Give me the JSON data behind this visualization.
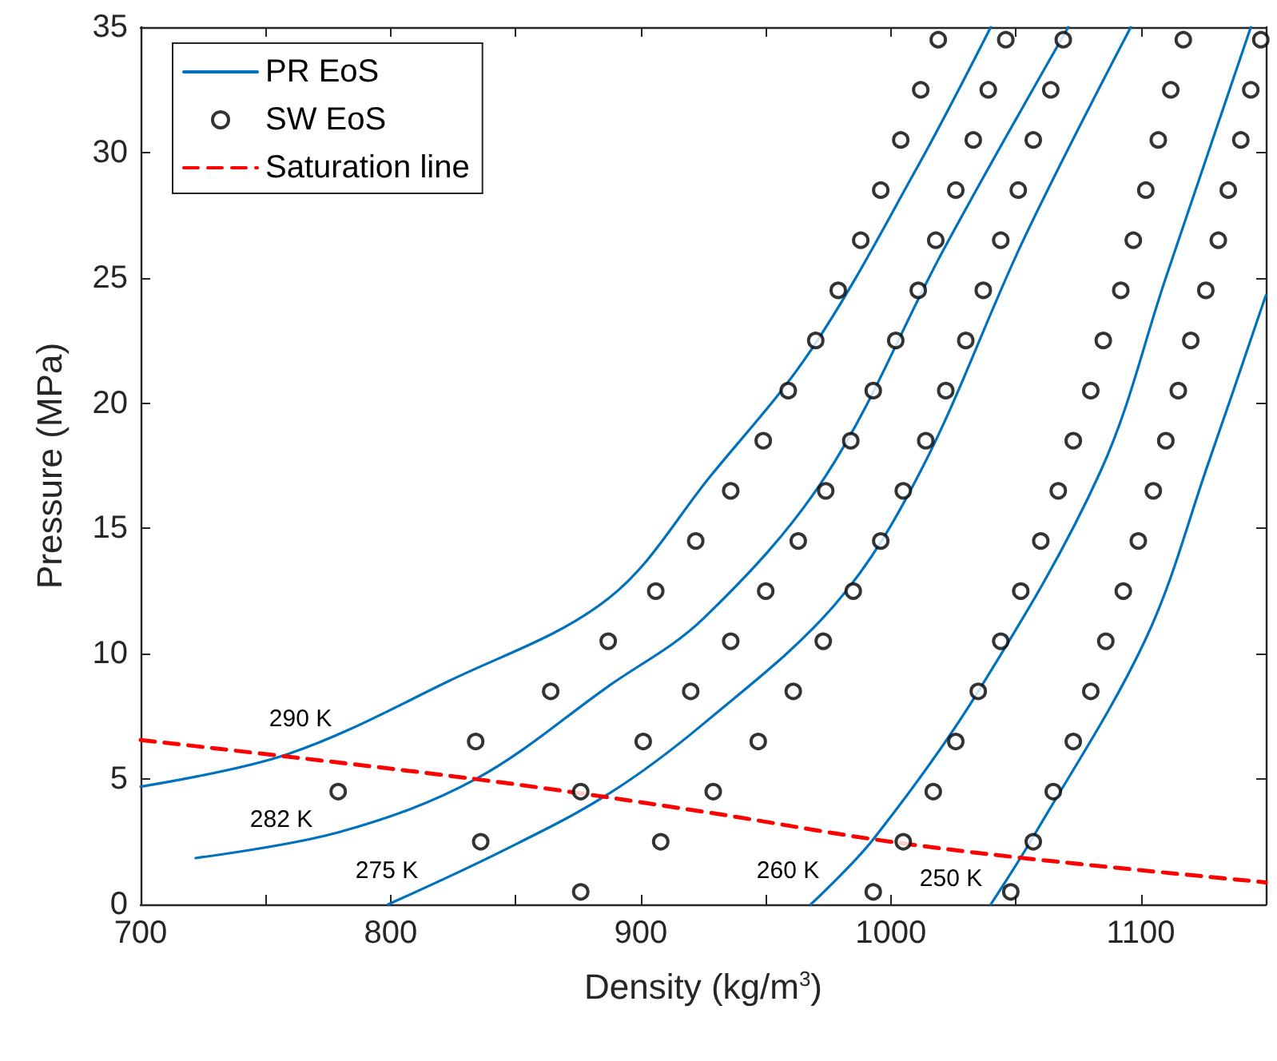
{
  "chart_data": {
    "type": "line",
    "xlabel": "Density (kg/m$^{3}$)",
    "ylabel": "Pressure (MPa)",
    "xlim": [
      700,
      1150
    ],
    "ylim": [
      0,
      35
    ],
    "xticks": [
      700,
      {
        "value": 750,
        "label": null
      },
      800,
      {
        "value": 850,
        "label": null
      },
      900,
      {
        "value": 950,
        "label": null
      },
      1000,
      {
        "value": 1050,
        "label": null
      },
      1100
    ],
    "yticks": [
      0,
      5,
      10,
      15,
      20,
      25,
      30,
      35
    ],
    "grid": false,
    "legend": "top left",
    "series": [
      {
        "name": "PR EoS",
        "color": "#0072bd",
        "x": [
          700,
          759,
          823,
          887,
          928,
          968,
          1010,
          1040
        ],
        "values": [
          4.7,
          6.0,
          8.9,
          12.2,
          17.1,
          22.1,
          29.3,
          35
        ]
      },
      {
        "color": "#0072bd",
        "x": [
          722,
          780,
          834,
          887,
          925,
          974,
          1021,
          1071
        ],
        "values": [
          1.85,
          2.9,
          5.0,
          8.7,
          11.4,
          17.1,
          26.1,
          35
        ]
      },
      {
        "color": "#0072bd",
        "x": [
          799,
          844,
          887,
          925,
          978,
          1012,
          1053,
          1096
        ],
        "values": [
          0,
          2.1,
          4.4,
          7.2,
          12.0,
          17.3,
          26.5,
          35
        ]
      },
      {
        "color": "#0072bd",
        "x": [
          968,
          993,
          1035,
          1084,
          1110,
          1144
        ],
        "values": [
          0,
          2.6,
          8.5,
          17.3,
          25.0,
          35
        ]
      },
      {
        "color": "#0072bd",
        "x": [
          1040,
          1057,
          1102,
          1127,
          1150
        ],
        "values": [
          0,
          2.7,
          10.6,
          17.6,
          24.3
        ]
      },
      {
        "name": "SW EoS",
        "type": "scatter",
        "color": "#000000",
        "marker": "circle",
        "x": [
          876,
          993,
          1048,
          836,
          908,
          1005,
          1057,
          779,
          876,
          929,
          1017,
          1065,
          834,
          901,
          947,
          1026,
          1073,
          864,
          920,
          961,
          1035,
          1080,
          887,
          936,
          973,
          1044,
          1086,
          906,
          950,
          985,
          1052,
          1093,
          922,
          963,
          996,
          1060,
          1099,
          936,
          974,
          1005,
          1067,
          1105,
          949,
          984,
          1014,
          1073,
          1110,
          959,
          993,
          1022,
          1080,
          1115,
          970,
          1002,
          1030,
          1085,
          1120,
          979,
          1011,
          1037,
          1092,
          1126,
          988,
          1018,
          1044,
          1097,
          1131,
          996,
          1026,
          1051,
          1102,
          1135,
          1004,
          1033,
          1057,
          1107,
          1140,
          1012,
          1039,
          1064,
          1112,
          1144,
          1019,
          1046,
          1069,
          1117,
          1148
        ],
        "values": [
          0.5,
          0.5,
          0.5,
          2.5,
          2.5,
          2.5,
          2.5,
          4.5,
          4.5,
          4.5,
          4.5,
          4.5,
          6.5,
          6.5,
          6.5,
          6.5,
          6.5,
          8.5,
          8.5,
          8.5,
          8.5,
          8.5,
          10.5,
          10.5,
          10.5,
          10.5,
          10.5,
          12.5,
          12.5,
          12.5,
          12.5,
          12.5,
          14.5,
          14.5,
          14.5,
          14.5,
          14.5,
          16.5,
          16.5,
          16.5,
          16.5,
          16.5,
          18.5,
          18.5,
          18.5,
          18.5,
          18.5,
          20.5,
          20.5,
          20.5,
          20.5,
          20.5,
          22.5,
          22.5,
          22.5,
          22.5,
          22.5,
          24.5,
          24.5,
          24.5,
          24.5,
          24.5,
          26.5,
          26.5,
          26.5,
          26.5,
          26.5,
          28.5,
          28.5,
          28.5,
          28.5,
          28.5,
          30.5,
          30.5,
          30.5,
          30.5,
          30.5,
          32.5,
          32.5,
          32.5,
          32.5,
          32.5,
          34.5,
          34.5,
          34.5,
          34.5,
          34.5
        ]
      },
      {
        "name": "Saturation line",
        "color": "#ff0000",
        "line_style": "dashed",
        "x": [
          700,
          834,
          925,
          993,
          1053,
          1150
        ],
        "values": [
          6.56,
          5.0,
          3.7,
          2.6,
          1.85,
          0.88
        ]
      }
    ],
    "annotations": [
      "290 K",
      "282 K",
      "275 K",
      "260 K",
      "250 K"
    ]
  }
}
